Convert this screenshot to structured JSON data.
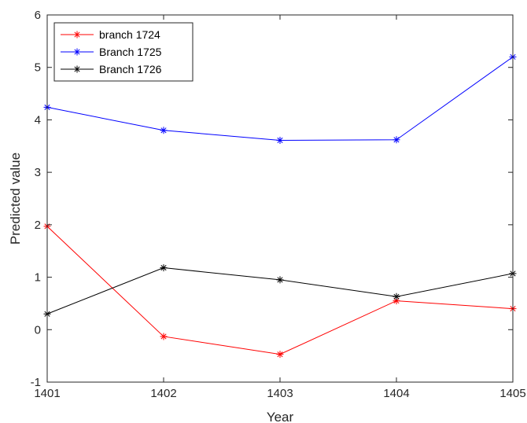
{
  "chart_data": {
    "type": "line",
    "title": "",
    "xlabel": "Year",
    "ylabel": "Predicted value",
    "x": [
      1401,
      1402,
      1403,
      1404,
      1405
    ],
    "x_tick_labels": [
      "1401",
      "1402",
      "1403",
      "1404",
      "1405"
    ],
    "xlim": [
      1401,
      1405
    ],
    "ylim": [
      -1,
      6
    ],
    "y_ticks": [
      -1,
      0,
      1,
      2,
      3,
      4,
      5,
      6
    ],
    "y_tick_labels": [
      "-1",
      "0",
      "1",
      "2",
      "3",
      "4",
      "5",
      "6"
    ],
    "grid": false,
    "legend_position": "top-left",
    "marker": "asterisk",
    "series": [
      {
        "name": "branch 1724",
        "color": "#ff0000",
        "values": [
          1.97,
          -0.13,
          -0.47,
          0.55,
          0.4
        ]
      },
      {
        "name": "Branch 1725",
        "color": "#0000ff",
        "values": [
          4.24,
          3.8,
          3.61,
          3.62,
          5.2
        ]
      },
      {
        "name": "Branch 1726",
        "color": "#000000",
        "values": [
          0.3,
          1.18,
          0.95,
          0.63,
          1.07
        ]
      }
    ]
  }
}
